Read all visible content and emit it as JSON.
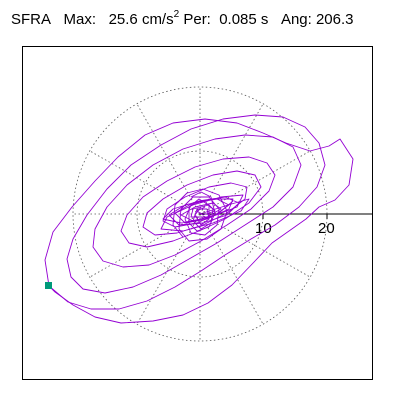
{
  "header": {
    "station": "SFRA",
    "max_label": "Max:",
    "max_value": "25.6",
    "max_unit_base": "cm/s",
    "max_unit_exp": "2",
    "per_label": "Per:",
    "per_value": "0.085 s",
    "ang_label": "Ang:",
    "ang_value": "206.3"
  },
  "axis": {
    "tick_labels": [
      "10",
      "20"
    ]
  },
  "colors": {
    "trace": "#9400d3",
    "marker": "#00997a",
    "grid": "#555555"
  }
}
